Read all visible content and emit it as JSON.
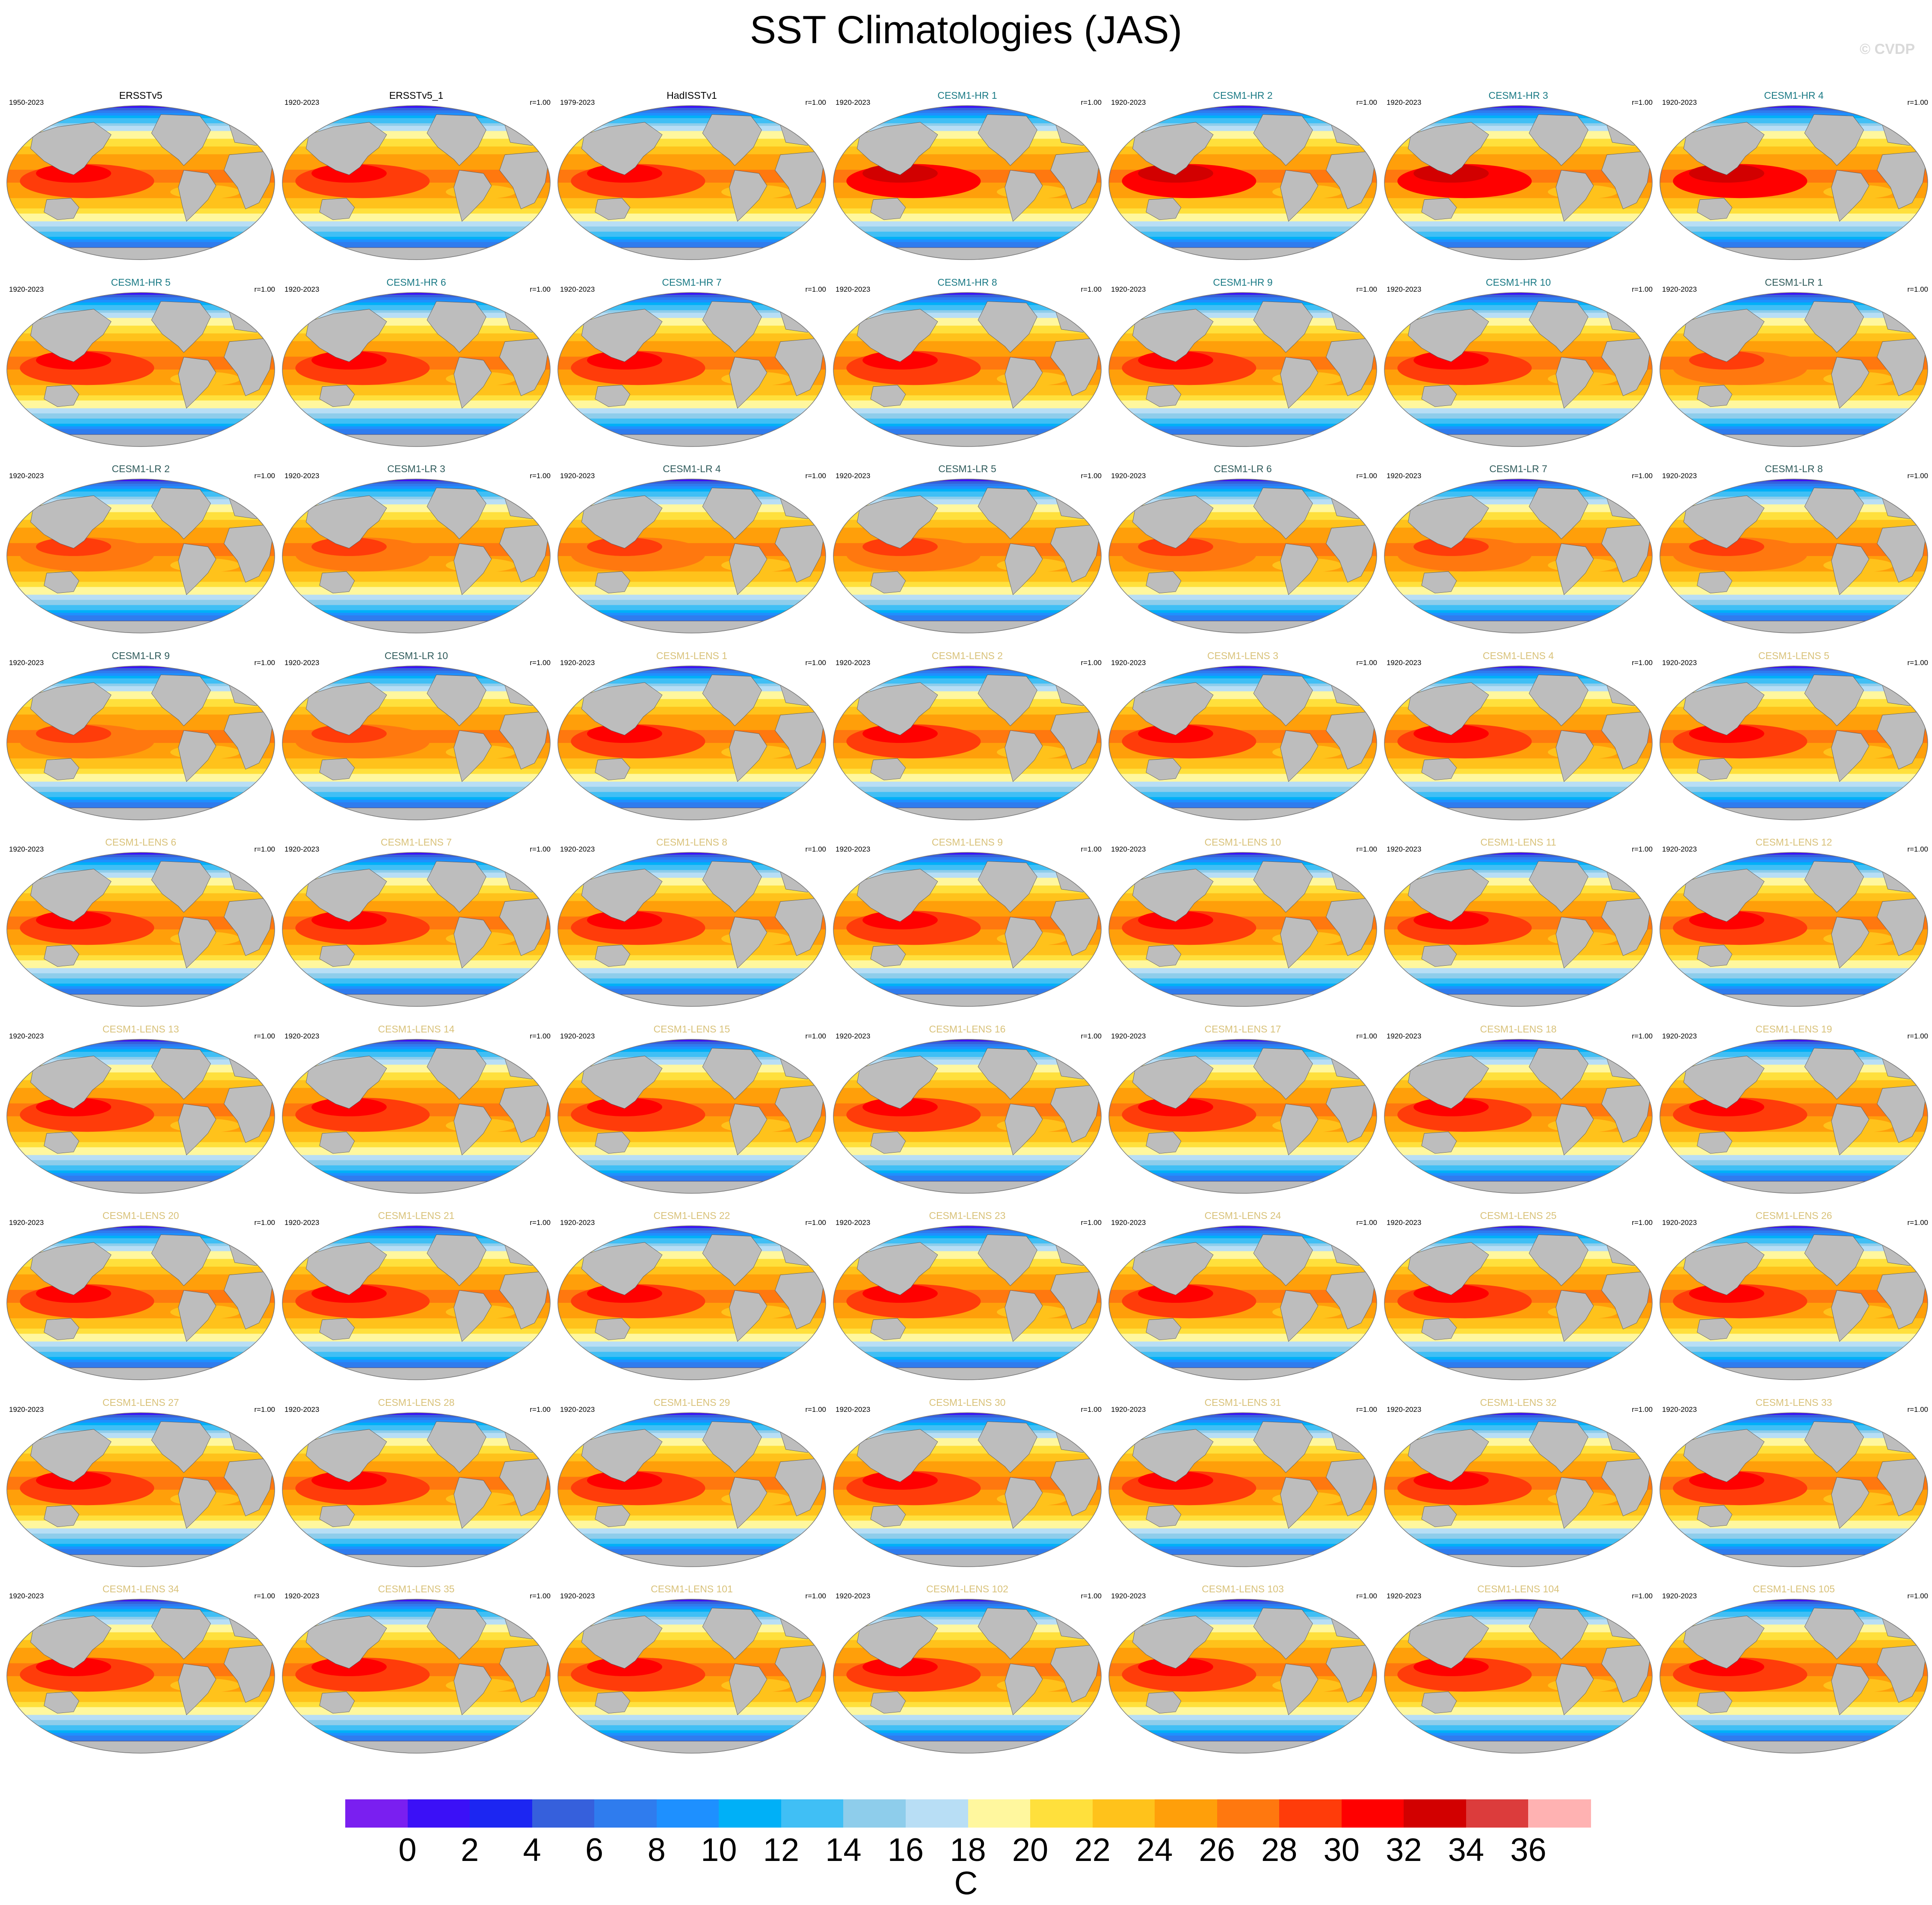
{
  "title": "SST Climatologies (JAS)",
  "watermark": "© CVDP",
  "units": "C",
  "colors": {
    "obs_title": "#000000",
    "hr_title": "#1a7a85",
    "lr_title": "#2f5b5b",
    "lens_title": "#d9c27a",
    "land": "#bdbdbd"
  },
  "colorbar": {
    "colors": [
      "#7a1ff0",
      "#3b10f7",
      "#1c26f2",
      "#3660dc",
      "#2f7cee",
      "#1e90ff",
      "#00b0f7",
      "#40bff5",
      "#8ecdeb",
      "#b8def5",
      "#fff79e",
      "#ffe03c",
      "#ffc21b",
      "#ff9f0a",
      "#ff780f",
      "#ff3c0a",
      "#ff0000",
      "#d20000",
      "#dc3c3c",
      "#ffb2b2"
    ],
    "ticks": [
      "0",
      "2",
      "4",
      "6",
      "8",
      "10",
      "12",
      "14",
      "16",
      "18",
      "20",
      "22",
      "24",
      "26",
      "28",
      "30",
      "32",
      "34",
      "36"
    ]
  },
  "chart_data": {
    "type": "heatmap",
    "title": "SST Climatologies (JAS)",
    "season": "JAS",
    "units": "C",
    "levels": [
      0,
      2,
      4,
      6,
      8,
      10,
      12,
      14,
      16,
      18,
      20,
      22,
      24,
      26,
      28,
      30,
      32,
      34,
      36
    ],
    "panels": [
      {
        "title": "ERSSTv5",
        "years": "1950-2023",
        "corr": "",
        "group": "obs",
        "warm_pool_max": 30
      },
      {
        "title": "ERSSTv5_1",
        "years": "1920-2023",
        "corr": "r=1.00",
        "group": "obs",
        "warm_pool_max": 30
      },
      {
        "title": "HadISSTv1",
        "years": "1979-2023",
        "corr": "r=1.00",
        "group": "obs",
        "warm_pool_max": 30
      },
      {
        "title": "CESM1-HR 1",
        "years": "1920-2023",
        "corr": "r=1.00",
        "group": "hr",
        "warm_pool_max": 32
      },
      {
        "title": "CESM1-HR 2",
        "years": "1920-2023",
        "corr": "r=1.00",
        "group": "hr",
        "warm_pool_max": 32
      },
      {
        "title": "CESM1-HR 3",
        "years": "1920-2023",
        "corr": "r=1.00",
        "group": "hr",
        "warm_pool_max": 32
      },
      {
        "title": "CESM1-HR 4",
        "years": "1920-2023",
        "corr": "r=1.00",
        "group": "hr",
        "warm_pool_max": 32
      },
      {
        "title": "CESM1-HR 5",
        "years": "1920-2023",
        "corr": "r=1.00",
        "group": "hr",
        "warm_pool_max": 30
      },
      {
        "title": "CESM1-HR 6",
        "years": "1920-2023",
        "corr": "r=1.00",
        "group": "hr",
        "warm_pool_max": 30
      },
      {
        "title": "CESM1-HR 7",
        "years": "1920-2023",
        "corr": "r=1.00",
        "group": "hr",
        "warm_pool_max": 30
      },
      {
        "title": "CESM1-HR 8",
        "years": "1920-2023",
        "corr": "r=1.00",
        "group": "hr",
        "warm_pool_max": 30
      },
      {
        "title": "CESM1-HR 9",
        "years": "1920-2023",
        "corr": "r=1.00",
        "group": "hr",
        "warm_pool_max": 30
      },
      {
        "title": "CESM1-HR 10",
        "years": "1920-2023",
        "corr": "r=1.00",
        "group": "hr",
        "warm_pool_max": 30
      },
      {
        "title": "CESM1-LR 1",
        "years": "1920-2023",
        "corr": "r=1.00",
        "group": "lr",
        "warm_pool_max": 28
      },
      {
        "title": "CESM1-LR 2",
        "years": "1920-2023",
        "corr": "r=1.00",
        "group": "lr",
        "warm_pool_max": 28
      },
      {
        "title": "CESM1-LR 3",
        "years": "1920-2023",
        "corr": "r=1.00",
        "group": "lr",
        "warm_pool_max": 28
      },
      {
        "title": "CESM1-LR 4",
        "years": "1920-2023",
        "corr": "r=1.00",
        "group": "lr",
        "warm_pool_max": 28
      },
      {
        "title": "CESM1-LR 5",
        "years": "1920-2023",
        "corr": "r=1.00",
        "group": "lr",
        "warm_pool_max": 28
      },
      {
        "title": "CESM1-LR 6",
        "years": "1920-2023",
        "corr": "r=1.00",
        "group": "lr",
        "warm_pool_max": 28
      },
      {
        "title": "CESM1-LR 7",
        "years": "1920-2023",
        "corr": "r=1.00",
        "group": "lr",
        "warm_pool_max": 28
      },
      {
        "title": "CESM1-LR 8",
        "years": "1920-2023",
        "corr": "r=1.00",
        "group": "lr",
        "warm_pool_max": 28
      },
      {
        "title": "CESM1-LR 9",
        "years": "1920-2023",
        "corr": "r=1.00",
        "group": "lr",
        "warm_pool_max": 28
      },
      {
        "title": "CESM1-LR 10",
        "years": "1920-2023",
        "corr": "r=1.00",
        "group": "lr",
        "warm_pool_max": 28
      },
      {
        "title": "CESM1-LENS 1",
        "years": "1920-2023",
        "corr": "r=1.00",
        "group": "lens",
        "warm_pool_max": 30
      },
      {
        "title": "CESM1-LENS 2",
        "years": "1920-2023",
        "corr": "r=1.00",
        "group": "lens",
        "warm_pool_max": 30
      },
      {
        "title": "CESM1-LENS 3",
        "years": "1920-2023",
        "corr": "r=1.00",
        "group": "lens",
        "warm_pool_max": 30
      },
      {
        "title": "CESM1-LENS 4",
        "years": "1920-2023",
        "corr": "r=1.00",
        "group": "lens",
        "warm_pool_max": 30
      },
      {
        "title": "CESM1-LENS 5",
        "years": "1920-2023",
        "corr": "r=1.00",
        "group": "lens",
        "warm_pool_max": 30
      },
      {
        "title": "CESM1-LENS 6",
        "years": "1920-2023",
        "corr": "r=1.00",
        "group": "lens",
        "warm_pool_max": 30
      },
      {
        "title": "CESM1-LENS 7",
        "years": "1920-2023",
        "corr": "r=1.00",
        "group": "lens",
        "warm_pool_max": 30
      },
      {
        "title": "CESM1-LENS 8",
        "years": "1920-2023",
        "corr": "r=1.00",
        "group": "lens",
        "warm_pool_max": 30
      },
      {
        "title": "CESM1-LENS 9",
        "years": "1920-2023",
        "corr": "r=1.00",
        "group": "lens",
        "warm_pool_max": 30
      },
      {
        "title": "CESM1-LENS 10",
        "years": "1920-2023",
        "corr": "r=1.00",
        "group": "lens",
        "warm_pool_max": 30
      },
      {
        "title": "CESM1-LENS 11",
        "years": "1920-2023",
        "corr": "r=1.00",
        "group": "lens",
        "warm_pool_max": 30
      },
      {
        "title": "CESM1-LENS 12",
        "years": "1920-2023",
        "corr": "r=1.00",
        "group": "lens",
        "warm_pool_max": 30
      },
      {
        "title": "CESM1-LENS 13",
        "years": "1920-2023",
        "corr": "r=1.00",
        "group": "lens",
        "warm_pool_max": 30
      },
      {
        "title": "CESM1-LENS 14",
        "years": "1920-2023",
        "corr": "r=1.00",
        "group": "lens",
        "warm_pool_max": 30
      },
      {
        "title": "CESM1-LENS 15",
        "years": "1920-2023",
        "corr": "r=1.00",
        "group": "lens",
        "warm_pool_max": 30
      },
      {
        "title": "CESM1-LENS 16",
        "years": "1920-2023",
        "corr": "r=1.00",
        "group": "lens",
        "warm_pool_max": 30
      },
      {
        "title": "CESM1-LENS 17",
        "years": "1920-2023",
        "corr": "r=1.00",
        "group": "lens",
        "warm_pool_max": 30
      },
      {
        "title": "CESM1-LENS 18",
        "years": "1920-2023",
        "corr": "r=1.00",
        "group": "lens",
        "warm_pool_max": 30
      },
      {
        "title": "CESM1-LENS 19",
        "years": "1920-2023",
        "corr": "r=1.00",
        "group": "lens",
        "warm_pool_max": 30
      },
      {
        "title": "CESM1-LENS 20",
        "years": "1920-2023",
        "corr": "r=1.00",
        "group": "lens",
        "warm_pool_max": 30
      },
      {
        "title": "CESM1-LENS 21",
        "years": "1920-2023",
        "corr": "r=1.00",
        "group": "lens",
        "warm_pool_max": 30
      },
      {
        "title": "CESM1-LENS 22",
        "years": "1920-2023",
        "corr": "r=1.00",
        "group": "lens",
        "warm_pool_max": 30
      },
      {
        "title": "CESM1-LENS 23",
        "years": "1920-2023",
        "corr": "r=1.00",
        "group": "lens",
        "warm_pool_max": 30
      },
      {
        "title": "CESM1-LENS 24",
        "years": "1920-2023",
        "corr": "r=1.00",
        "group": "lens",
        "warm_pool_max": 30
      },
      {
        "title": "CESM1-LENS 25",
        "years": "1920-2023",
        "corr": "r=1.00",
        "group": "lens",
        "warm_pool_max": 30
      },
      {
        "title": "CESM1-LENS 26",
        "years": "1920-2023",
        "corr": "r=1.00",
        "group": "lens",
        "warm_pool_max": 30
      },
      {
        "title": "CESM1-LENS 27",
        "years": "1920-2023",
        "corr": "r=1.00",
        "group": "lens",
        "warm_pool_max": 30
      },
      {
        "title": "CESM1-LENS 28",
        "years": "1920-2023",
        "corr": "r=1.00",
        "group": "lens",
        "warm_pool_max": 30
      },
      {
        "title": "CESM1-LENS 29",
        "years": "1920-2023",
        "corr": "r=1.00",
        "group": "lens",
        "warm_pool_max": 30
      },
      {
        "title": "CESM1-LENS 30",
        "years": "1920-2023",
        "corr": "r=1.00",
        "group": "lens",
        "warm_pool_max": 30
      },
      {
        "title": "CESM1-LENS 31",
        "years": "1920-2023",
        "corr": "r=1.00",
        "group": "lens",
        "warm_pool_max": 30
      },
      {
        "title": "CESM1-LENS 32",
        "years": "1920-2023",
        "corr": "r=1.00",
        "group": "lens",
        "warm_pool_max": 30
      },
      {
        "title": "CESM1-LENS 33",
        "years": "1920-2023",
        "corr": "r=1.00",
        "group": "lens",
        "warm_pool_max": 30
      },
      {
        "title": "CESM1-LENS 34",
        "years": "1920-2023",
        "corr": "r=1.00",
        "group": "lens",
        "warm_pool_max": 30
      },
      {
        "title": "CESM1-LENS 35",
        "years": "1920-2023",
        "corr": "r=1.00",
        "group": "lens",
        "warm_pool_max": 30
      },
      {
        "title": "CESM1-LENS 101",
        "years": "1920-2023",
        "corr": "r=1.00",
        "group": "lens",
        "warm_pool_max": 30
      },
      {
        "title": "CESM1-LENS 102",
        "years": "1920-2023",
        "corr": "r=1.00",
        "group": "lens",
        "warm_pool_max": 30
      },
      {
        "title": "CESM1-LENS 103",
        "years": "1920-2023",
        "corr": "r=1.00",
        "group": "lens",
        "warm_pool_max": 30
      },
      {
        "title": "CESM1-LENS 104",
        "years": "1920-2023",
        "corr": "r=1.00",
        "group": "lens",
        "warm_pool_max": 30
      },
      {
        "title": "CESM1-LENS 105",
        "years": "1920-2023",
        "corr": "r=1.00",
        "group": "lens",
        "warm_pool_max": 30
      }
    ]
  }
}
